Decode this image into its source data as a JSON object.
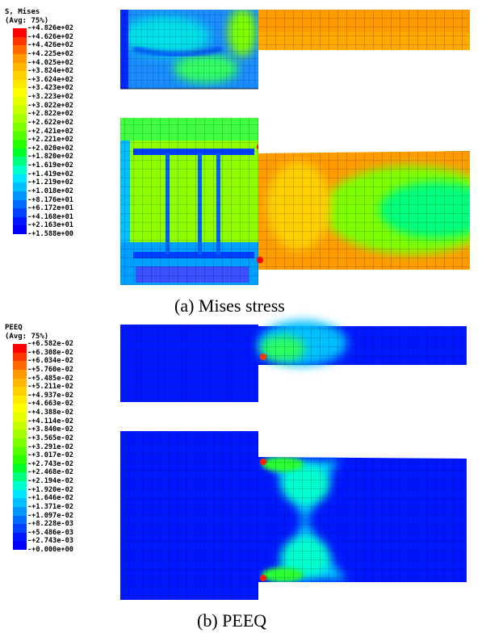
{
  "panel_a": {
    "caption": "(a) Mises stress",
    "legend": {
      "title_line1": "S, Mises",
      "title_line2": "(Avg: 75%)",
      "labels": [
        "+4.826e+02",
        "+4.626e+02",
        "+4.426e+02",
        "+4.225e+02",
        "+4.025e+02",
        "+3.824e+02",
        "+3.624e+02",
        "+3.423e+02",
        "+3.223e+02",
        "+3.022e+02",
        "+2.822e+02",
        "+2.622e+02",
        "+2.421e+02",
        "+2.221e+02",
        "+2.020e+02",
        "+1.820e+02",
        "+1.619e+02",
        "+1.419e+02",
        "+1.219e+02",
        "+1.018e+02",
        "+8.176e+01",
        "+6.172e+01",
        "+4.168e+01",
        "+2.163e+01",
        "+1.588e+00"
      ],
      "colors": [
        "#ff0000",
        "#ff3500",
        "#ff6a00",
        "#ff9b00",
        "#ffb600",
        "#ffd000",
        "#ffe900",
        "#ffff00",
        "#e4ff00",
        "#c8ff00",
        "#a5ff00",
        "#7dff00",
        "#53ff00",
        "#2aff00",
        "#00ff2a",
        "#00ff7d",
        "#00ffcf",
        "#00e5ff",
        "#00c0ff",
        "#0096ff",
        "#006bff",
        "#0040ff",
        "#0015ff",
        "#0000ff"
      ]
    }
  },
  "panel_b": {
    "caption": "(b) PEEQ",
    "legend": {
      "title_line1": "PEEQ",
      "title_line2": "(Avg: 75%)",
      "labels": [
        "+6.582e-02",
        "+6.308e-02",
        "+6.034e-02",
        "+5.760e-02",
        "+5.485e-02",
        "+5.211e-02",
        "+4.937e-02",
        "+4.663e-02",
        "+4.388e-02",
        "+4.114e-02",
        "+3.840e-02",
        "+3.565e-02",
        "+3.291e-02",
        "+3.017e-02",
        "+2.743e-02",
        "+2.468e-02",
        "+2.194e-02",
        "+1.920e-02",
        "+1.646e-02",
        "+1.371e-02",
        "+1.097e-02",
        "+8.228e-03",
        "+5.486e-03",
        "+2.743e-03",
        "+0.000e+00"
      ],
      "colors": [
        "#ff0000",
        "#ff3500",
        "#ff6a00",
        "#ff9b00",
        "#ffb600",
        "#ffd000",
        "#ffe900",
        "#ffff00",
        "#e4ff00",
        "#c8ff00",
        "#a5ff00",
        "#7dff00",
        "#53ff00",
        "#2aff00",
        "#00ff2a",
        "#00ff7d",
        "#00ffcf",
        "#00e5ff",
        "#00c0ff",
        "#0096ff",
        "#006bff",
        "#0040ff",
        "#0015ff",
        "#0000ff"
      ]
    }
  }
}
